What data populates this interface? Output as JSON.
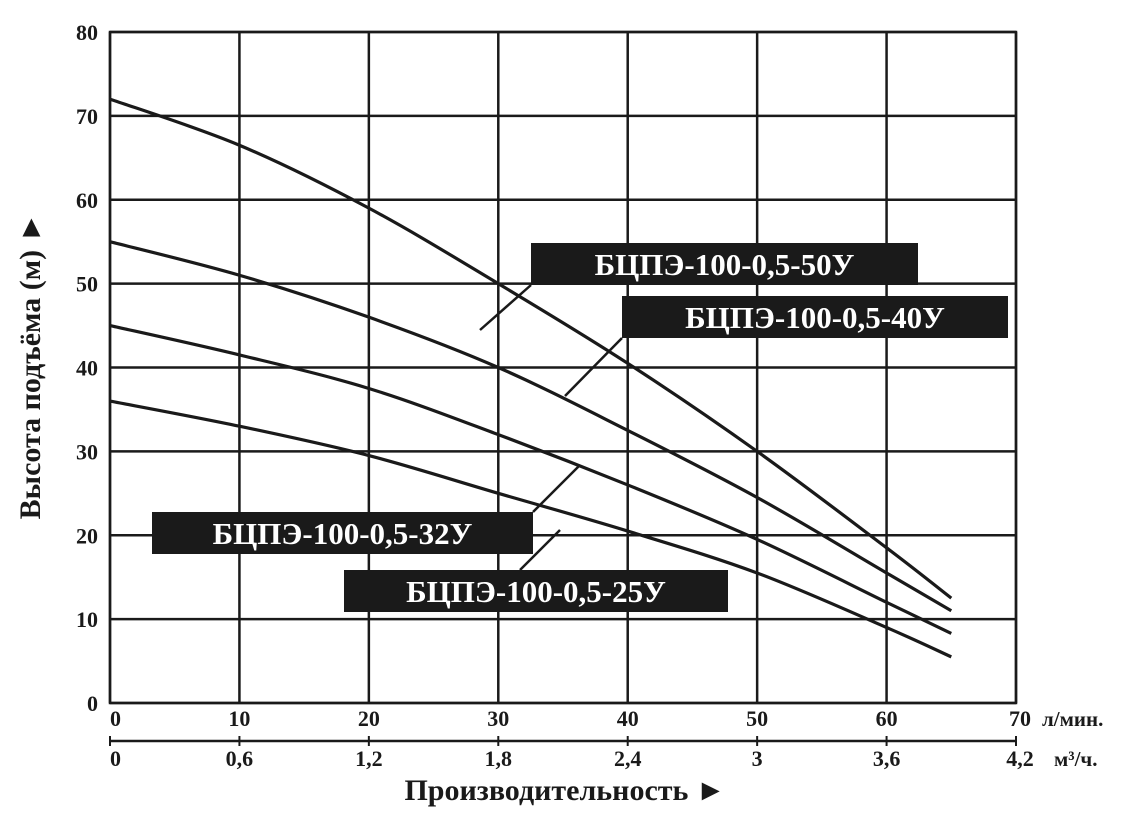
{
  "chart_data": {
    "type": "line",
    "xlabel": "Производительность ►",
    "ylabel": "Высота подъёма (м) ►",
    "x_unit": "л/мин.",
    "x2_unit": "м³/ч.",
    "xlim": [
      0,
      70
    ],
    "ylim": [
      0,
      80
    ],
    "grid": true,
    "x_ticks": [
      "0",
      "10",
      "20",
      "30",
      "40",
      "50",
      "60",
      "70"
    ],
    "x2_ticks": [
      "0",
      "0,6",
      "1,2",
      "1,8",
      "2,4",
      "3",
      "3,6",
      "4,2"
    ],
    "y_ticks": [
      "0",
      "10",
      "20",
      "30",
      "40",
      "50",
      "60",
      "70",
      "80"
    ],
    "x": [
      0,
      10,
      20,
      30,
      40,
      50,
      60,
      65
    ],
    "series": [
      {
        "name": "БЦПЭ-100-0,5-50У",
        "values": [
          72,
          66.5,
          59,
          50,
          40.5,
          30,
          18.5,
          12.5
        ]
      },
      {
        "name": "БЦПЭ-100-0,5-40У",
        "values": [
          55,
          51,
          46,
          40,
          32.5,
          24.5,
          15.5,
          11
        ]
      },
      {
        "name": "БЦПЭ-100-0,5-32У",
        "values": [
          45,
          41.5,
          37.5,
          32,
          26,
          19.5,
          12,
          8.3
        ]
      },
      {
        "name": "БЦПЭ-100-0,5-25У",
        "values": [
          36,
          33,
          29.5,
          25,
          20.5,
          15.5,
          9,
          5.5
        ]
      }
    ]
  }
}
